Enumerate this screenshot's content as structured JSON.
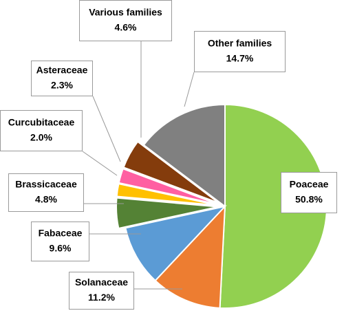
{
  "chart_data": {
    "type": "pie",
    "categories": [
      "Poaceae",
      "Solanaceae",
      "Fabaceae",
      "Brassicaceae",
      "Curcubitaceae",
      "Asteraceae",
      "Various families",
      "Other families"
    ],
    "values": [
      50.8,
      11.2,
      9.6,
      4.8,
      2.0,
      2.3,
      4.6,
      14.7
    ],
    "value_labels": [
      "50.8%",
      "11.2%",
      "9.6%",
      "4.8%",
      "2.0%",
      "2.3%",
      "4.6%",
      "14.7%"
    ],
    "colors": [
      "#92d050",
      "#ed7d31",
      "#5b9bd5",
      "#548235",
      "#ffc000",
      "#ff5fa2",
      "#843c0c",
      "#808080"
    ],
    "exploded": [
      false,
      false,
      false,
      true,
      true,
      true,
      true,
      false
    ]
  }
}
